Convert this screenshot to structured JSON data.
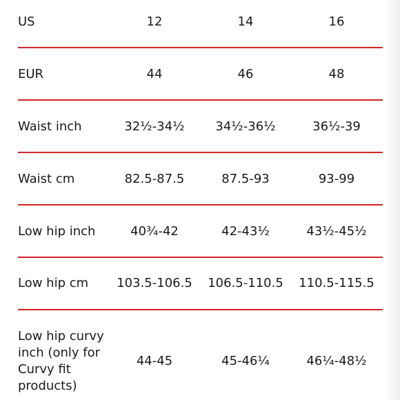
{
  "size_table": {
    "rows": [
      {
        "label": "US",
        "values": [
          "12",
          "14",
          "16"
        ]
      },
      {
        "label": "EUR",
        "values": [
          "44",
          "46",
          "48"
        ]
      },
      {
        "label": "Waist inch",
        "values": [
          "32½-34½",
          "34½-36½",
          "36½-39"
        ]
      },
      {
        "label": "Waist cm",
        "values": [
          "82.5-87.5",
          "87.5-93",
          "93-99"
        ]
      },
      {
        "label": "Low hip inch",
        "values": [
          "40¾-42",
          "42-43½",
          "43½-45½"
        ]
      },
      {
        "label": "Low hip cm",
        "values": [
          "103.5-106.5",
          "106.5-110.5",
          "110.5-115.5"
        ]
      },
      {
        "label": "Low hip curvy inch (only for Curvy fit products)",
        "values": [
          "44-45",
          "45-46¼",
          "46¼-48½"
        ]
      }
    ],
    "divider_color": "#d22424"
  }
}
